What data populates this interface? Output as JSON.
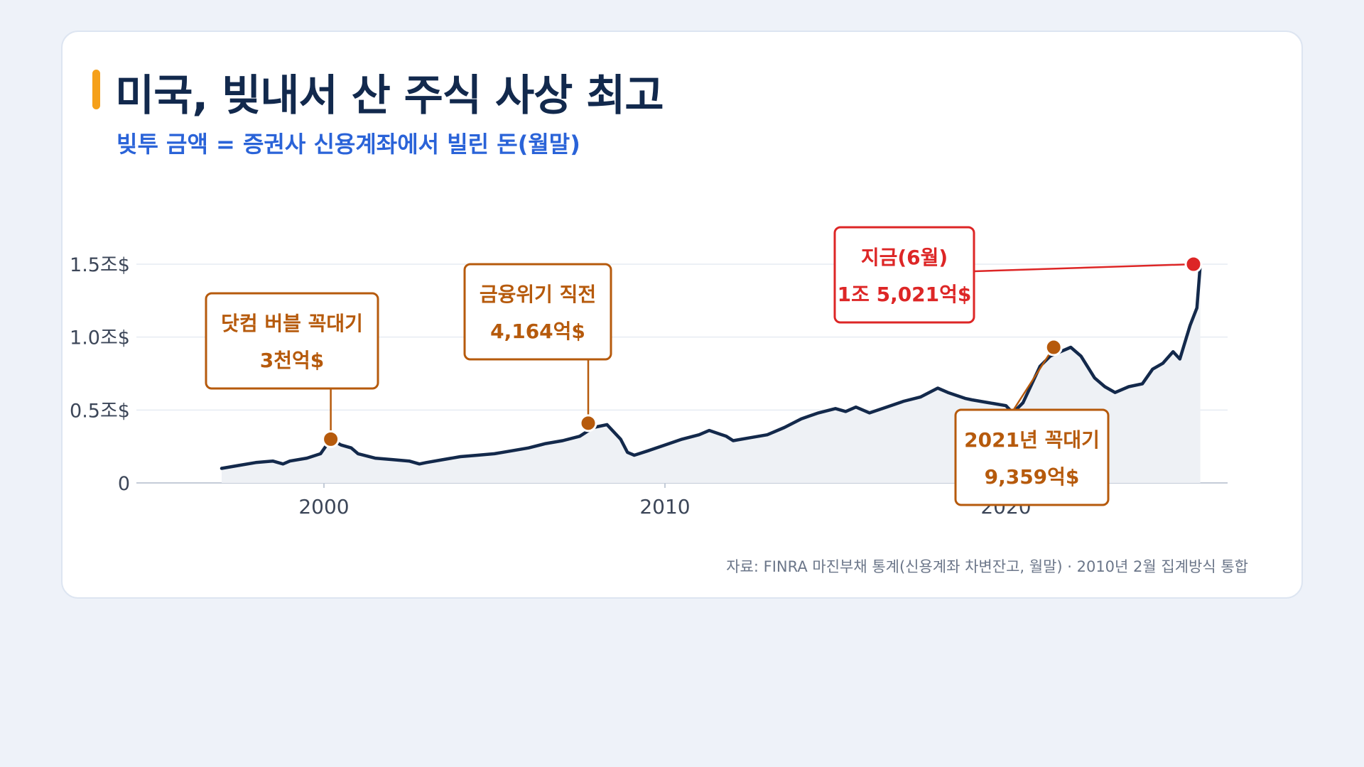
{
  "title": "미국, 빚내서 산 주식 사상 최고",
  "subtitle": "빚투 금액 = 증권사 신용계좌에서 빌린 돈(월말)",
  "source": "자료: FINRA 마진부채 통계(신용계좌 차변잔고, 월말) · 2010년 2월 집계방식 통합",
  "colors": {
    "accent": "#f5a01a",
    "title": "#12294d",
    "subtitle": "#2a63d8",
    "line": "#13294b",
    "area": "#eef1f5",
    "annotation": "#b65a0c",
    "current": "#dd2626"
  },
  "chart_data": {
    "type": "area",
    "xlim": [
      1994.5,
      2026.5
    ],
    "ylim": [
      0,
      1.5
    ],
    "yticks": [
      {
        "value": 0,
        "label": "0"
      },
      {
        "value": 0.5,
        "label": "0.5조$"
      },
      {
        "value": 1.0,
        "label": "1.0조$"
      },
      {
        "value": 1.5,
        "label": "1.5조$"
      }
    ],
    "xticks": [
      {
        "value": 2000,
        "label": "2000"
      },
      {
        "value": 2010,
        "label": "2010"
      },
      {
        "value": 2020,
        "label": "2020"
      }
    ],
    "grid": true,
    "series": [
      {
        "x": [
          1997.0,
          1997.5,
          1998.0,
          1998.5,
          1998.8,
          1999.0,
          1999.5,
          1999.9,
          2000.2,
          2000.5,
          2000.8,
          2001.0,
          2001.5,
          2002.0,
          2002.5,
          2002.8,
          2003.0,
          2003.5,
          2004.0,
          2004.5,
          2005.0,
          2005.5,
          2006.0,
          2006.5,
          2007.0,
          2007.5,
          2007.9,
          2008.3,
          2008.7,
          2008.9,
          2009.1,
          2009.5,
          2010.0,
          2010.5,
          2011.0,
          2011.3,
          2011.8,
          2012.0,
          2012.5,
          2013.0,
          2013.5,
          2014.0,
          2014.5,
          2015.0,
          2015.3,
          2015.6,
          2016.0,
          2016.5,
          2017.0,
          2017.5,
          2018.0,
          2018.3,
          2018.8,
          2019.0,
          2019.5,
          2020.0,
          2020.2,
          2020.5,
          2020.8,
          2021.0,
          2021.3,
          2021.6,
          2021.9,
          2022.2,
          2022.6,
          2022.9,
          2023.2,
          2023.6,
          2024.0,
          2024.3,
          2024.6,
          2024.9,
          2025.1,
          2025.4,
          2025.6,
          2025.7
        ],
        "y": [
          0.1,
          0.12,
          0.14,
          0.15,
          0.13,
          0.15,
          0.17,
          0.2,
          0.3,
          0.26,
          0.24,
          0.2,
          0.17,
          0.16,
          0.15,
          0.13,
          0.14,
          0.16,
          0.18,
          0.19,
          0.2,
          0.22,
          0.24,
          0.27,
          0.29,
          0.32,
          0.38,
          0.4,
          0.3,
          0.21,
          0.19,
          0.22,
          0.26,
          0.3,
          0.33,
          0.36,
          0.32,
          0.29,
          0.31,
          0.33,
          0.38,
          0.44,
          0.48,
          0.51,
          0.49,
          0.52,
          0.48,
          0.52,
          0.56,
          0.59,
          0.65,
          0.62,
          0.58,
          0.57,
          0.55,
          0.53,
          0.48,
          0.55,
          0.7,
          0.8,
          0.87,
          0.9,
          0.93,
          0.87,
          0.72,
          0.66,
          0.62,
          0.66,
          0.68,
          0.78,
          0.82,
          0.9,
          0.85,
          1.08,
          1.2,
          1.5
        ]
      }
    ],
    "annotations": [
      {
        "x": 2000.2,
        "y": 0.3,
        "label": "닷컴 버블 꼭대기",
        "value": "3천억$",
        "style": "peak"
      },
      {
        "x": 2007.75,
        "y": 0.41,
        "label": "금융위기 직전",
        "value": "4,164억$",
        "style": "peak"
      },
      {
        "x": 2021.4,
        "y": 0.93,
        "label": "2021년 꼭대기",
        "value": "9,359억$",
        "style": "peak"
      },
      {
        "x": 2025.5,
        "y": 1.5,
        "label": "지금(6월)",
        "value": "1조 5,021억$",
        "style": "current"
      }
    ]
  }
}
